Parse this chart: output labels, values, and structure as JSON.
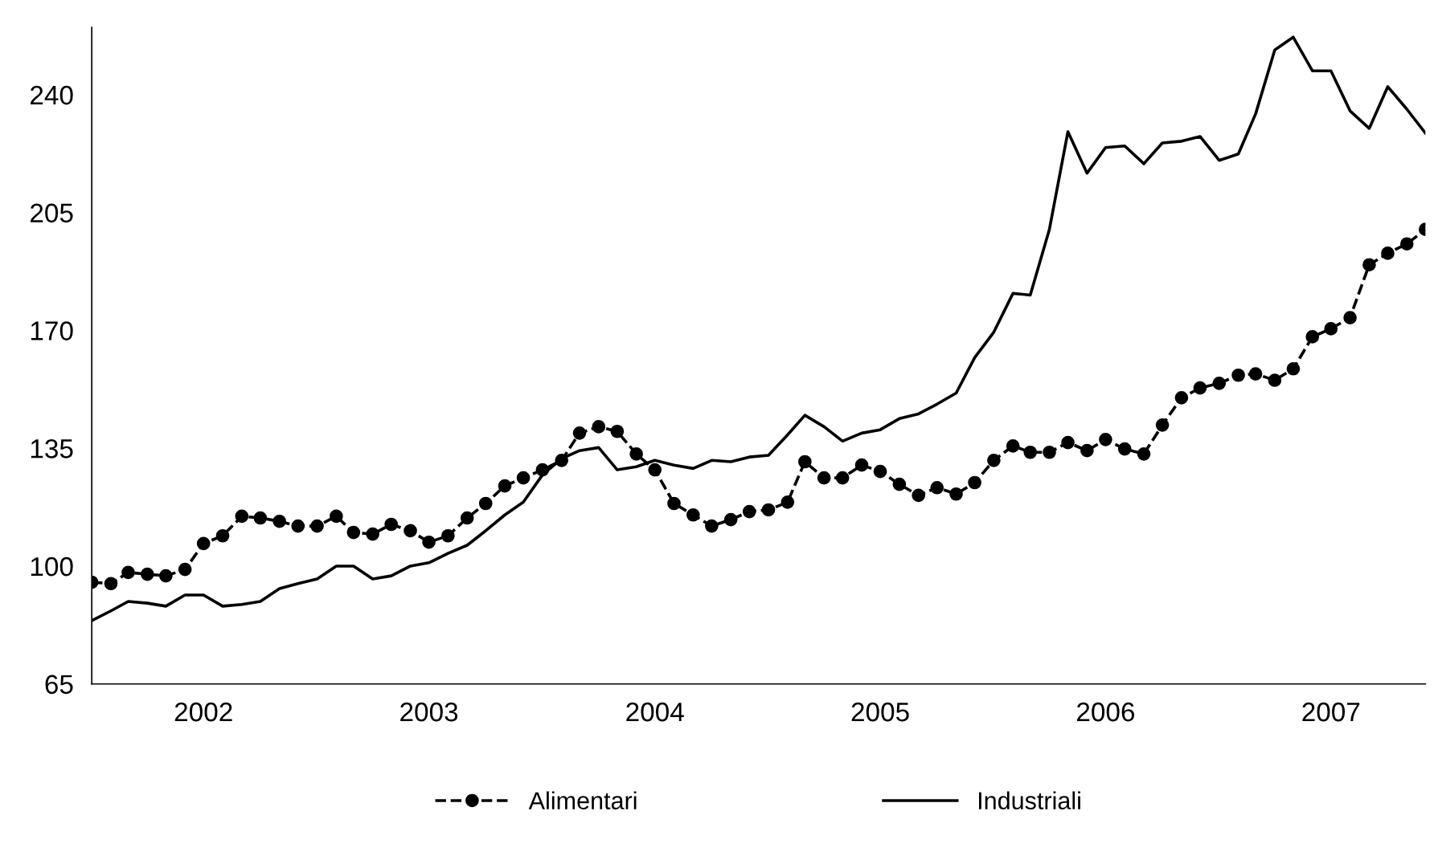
{
  "chart_data": {
    "type": "line",
    "x": [
      "2002-01",
      "2002-02",
      "2002-03",
      "2002-04",
      "2002-05",
      "2002-06",
      "2002-07",
      "2002-08",
      "2002-09",
      "2002-10",
      "2002-11",
      "2002-12",
      "2003-01",
      "2003-02",
      "2003-03",
      "2003-04",
      "2003-05",
      "2003-06",
      "2003-07",
      "2003-08",
      "2003-09",
      "2003-10",
      "2003-11",
      "2003-12",
      "2004-01",
      "2004-02",
      "2004-03",
      "2004-04",
      "2004-05",
      "2004-06",
      "2004-07",
      "2004-08",
      "2004-09",
      "2004-10",
      "2004-11",
      "2004-12",
      "2005-01",
      "2005-02",
      "2005-03",
      "2005-04",
      "2005-05",
      "2005-06",
      "2005-07",
      "2005-08",
      "2005-09",
      "2005-10",
      "2005-11",
      "2005-12",
      "2006-01",
      "2006-02",
      "2006-03",
      "2006-04",
      "2006-05",
      "2006-06",
      "2006-07",
      "2006-08",
      "2006-09",
      "2006-10",
      "2006-11",
      "2006-12",
      "2007-01",
      "2007-02",
      "2007-03",
      "2007-04",
      "2007-05",
      "2007-06",
      "2007-07",
      "2007-08",
      "2007-09",
      "2007-10",
      "2007-11",
      "2007-12"
    ],
    "ylim": [
      65,
      260
    ],
    "yticks": [
      65,
      100,
      135,
      170,
      205,
      240
    ],
    "xlim": [
      "2002-01",
      "2007-12"
    ],
    "xticks": [
      {
        "value": "2002-07",
        "label": "2002"
      },
      {
        "value": "2003-07",
        "label": "2003"
      },
      {
        "value": "2004-07",
        "label": "2004"
      },
      {
        "value": "2005-07",
        "label": "2005"
      },
      {
        "value": "2006-07",
        "label": "2006"
      },
      {
        "value": "2007-07",
        "label": "2007"
      }
    ],
    "grid": false,
    "legend": "bottom",
    "series": [
      {
        "name": "Alimentari",
        "color": "#000000",
        "marker": "circle",
        "line_style": "dashed",
        "values": [
          95.2,
          94.8,
          98.1,
          97.6,
          97.1,
          99.0,
          106.7,
          109.0,
          114.8,
          114.3,
          113.3,
          111.9,
          111.9,
          114.8,
          110.0,
          109.5,
          112.4,
          110.5,
          107.1,
          109.0,
          114.3,
          118.6,
          123.8,
          126.2,
          128.6,
          131.4,
          139.5,
          141.4,
          140.0,
          133.3,
          128.6,
          118.6,
          115.2,
          111.9,
          113.8,
          116.2,
          116.7,
          119.0,
          131.0,
          126.2,
          126.2,
          130.0,
          128.1,
          124.3,
          121.0,
          123.3,
          121.4,
          124.8,
          131.4,
          135.7,
          133.8,
          133.8,
          136.7,
          134.3,
          137.6,
          134.8,
          133.3,
          141.9,
          150.0,
          152.9,
          154.3,
          156.7,
          157.1,
          155.2,
          158.6,
          168.1,
          170.5,
          173.8,
          189.5,
          192.9,
          195.7,
          200.0
        ]
      },
      {
        "name": "Industriali",
        "color": "#000000",
        "marker": "none",
        "line_style": "solid",
        "values": [
          83.8,
          86.7,
          89.5,
          89.0,
          88.1,
          91.4,
          91.4,
          88.1,
          88.6,
          89.5,
          93.3,
          94.8,
          96.2,
          100,
          100,
          96.2,
          97.1,
          100,
          101.0,
          103.8,
          106.2,
          110.5,
          115.2,
          119.0,
          127.1,
          131.9,
          134.3,
          135.2,
          128.6,
          129.5,
          131.4,
          130.0,
          129.0,
          131.4,
          131.0,
          132.4,
          132.9,
          139.0,
          144.8,
          141.4,
          137.1,
          139.5,
          140.5,
          143.8,
          145.2,
          148.1,
          151.4,
          161.9,
          169.5,
          181.0,
          180.5,
          200.0,
          229.0,
          216.7,
          224.3,
          224.8,
          219.5,
          225.7,
          226.2,
          227.6,
          220.5,
          222.4,
          234.3,
          253.3,
          257.1,
          247.1,
          247.1,
          235.2,
          230.0,
          242.4,
          235.7,
          228.6
        ]
      }
    ]
  }
}
